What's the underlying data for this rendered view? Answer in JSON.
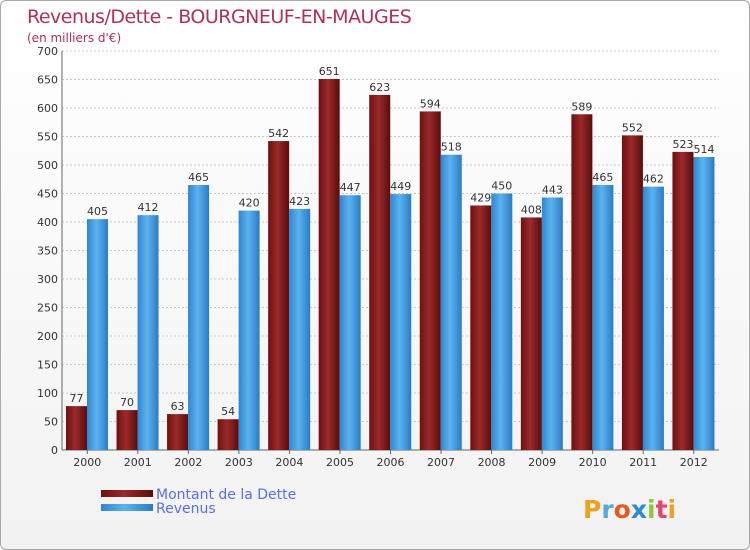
{
  "chart_data": {
    "type": "bar",
    "title": "Revenus/Dette - BOURGNEUF-EN-MAUGES",
    "subtitle": "(en milliers d'€)",
    "categories": [
      "2000",
      "2001",
      "2002",
      "2003",
      "2004",
      "2005",
      "2006",
      "2007",
      "2008",
      "2009",
      "2010",
      "2011",
      "2012"
    ],
    "series": [
      {
        "name": "Montant de la Dette",
        "color": "#8b1a1a",
        "values": [
          77,
          70,
          63,
          54,
          542,
          651,
          623,
          594,
          429,
          408,
          589,
          552,
          523
        ]
      },
      {
        "name": "Revenus",
        "color": "#4aa3e8",
        "values": [
          405,
          412,
          465,
          420,
          423,
          447,
          449,
          518,
          450,
          443,
          465,
          462,
          514
        ]
      }
    ],
    "ylim": [
      0,
      700
    ],
    "yticks": [
      0,
      50,
      100,
      150,
      200,
      250,
      300,
      350,
      400,
      450,
      500,
      550,
      600,
      650,
      700
    ],
    "grid": true,
    "legend_position": "bottom-left",
    "logo": "Proxiti"
  }
}
